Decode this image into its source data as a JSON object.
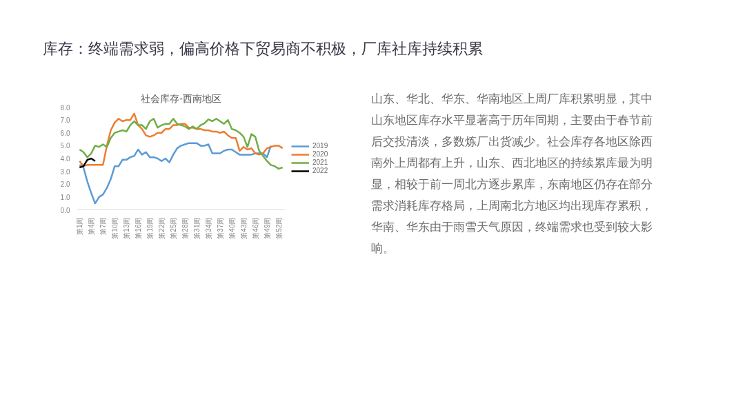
{
  "chart_data": {
    "type": "line",
    "title": "社会库存-西南地区",
    "categories": [
      "第1周",
      null,
      null,
      "第4周",
      null,
      null,
      "第7周",
      null,
      null,
      "第10周",
      null,
      null,
      "第13周",
      null,
      null,
      "第16周",
      null,
      null,
      "第19周",
      null,
      null,
      "第22周",
      null,
      null,
      "第25周",
      null,
      null,
      "第28周",
      null,
      null,
      "第31周",
      null,
      null,
      "第34周",
      null,
      null,
      "第37周",
      null,
      null,
      "第40周",
      null,
      null,
      "第43周",
      null,
      null,
      "第46周",
      null,
      null,
      "第49周",
      null,
      null,
      "第52周",
      null
    ],
    "series": [
      {
        "name": "2019",
        "color": "#5b9bd5",
        "values": [
          3.5,
          3.3,
          2.2,
          1.3,
          0.5,
          1.0,
          1.2,
          1.7,
          2.4,
          3.4,
          3.4,
          3.9,
          3.9,
          4.1,
          4.2,
          4.7,
          4.3,
          4.5,
          4.1,
          4.1,
          4.0,
          3.8,
          4.0,
          3.7,
          4.3,
          4.8,
          5.0,
          5.1,
          5.2,
          5.2,
          5.2,
          5.0,
          5.0,
          5.1,
          4.4,
          4.4,
          4.4,
          4.6,
          4.7,
          4.7,
          4.5,
          4.3,
          4.3,
          4.3,
          4.3,
          4.4,
          4.4,
          4.4,
          4.1,
          5.0,
          null,
          null,
          null
        ]
      },
      {
        "name": "2020",
        "color": "#ed7d31",
        "values": [
          3.8,
          3.4,
          3.5,
          3.5,
          3.5,
          3.5,
          3.5,
          5.0,
          6.2,
          6.8,
          7.1,
          6.9,
          7.0,
          7.0,
          7.5,
          6.6,
          6.3,
          5.8,
          5.7,
          5.8,
          6.0,
          6.0,
          6.3,
          6.3,
          6.6,
          6.6,
          6.7,
          6.7,
          6.4,
          6.4,
          6.3,
          6.3,
          6.2,
          6.2,
          6.1,
          6.1,
          6.0,
          6.1,
          5.8,
          5.6,
          5.6,
          4.6,
          4.9,
          4.7,
          4.8,
          4.4,
          4.3,
          4.4,
          4.8,
          4.9,
          5.0,
          5.0,
          4.8
        ]
      },
      {
        "name": "2021",
        "color": "#70ad47",
        "values": [
          4.7,
          4.5,
          4.1,
          4.4,
          5.0,
          4.9,
          5.1,
          4.9,
          5.6,
          6.0,
          6.1,
          6.2,
          6.1,
          6.6,
          6.9,
          6.6,
          6.6,
          6.3,
          6.9,
          7.1,
          6.4,
          6.6,
          6.7,
          6.7,
          7.1,
          6.7,
          6.6,
          6.5,
          6.3,
          6.5,
          6.3,
          6.6,
          6.75,
          7.05,
          6.9,
          7.1,
          6.9,
          6.7,
          7.0,
          6.3,
          6.2,
          6.0,
          5.7,
          4.9,
          5.9,
          5.7,
          4.6,
          4.2,
          3.8,
          3.5,
          3.4,
          3.2,
          3.3
        ]
      },
      {
        "name": "2022",
        "color": "#000000",
        "values": [
          3.3,
          3.4,
          3.9,
          4.0,
          3.8,
          null,
          null,
          null,
          null,
          null,
          null,
          null,
          null,
          null,
          null,
          null,
          null,
          null,
          null,
          null,
          null,
          null,
          null,
          null,
          null,
          null,
          null,
          null,
          null,
          null,
          null,
          null,
          null,
          null,
          null,
          null,
          null,
          null,
          null,
          null,
          null,
          null,
          null,
          null,
          null,
          null,
          null,
          null,
          null,
          null,
          null,
          null,
          null
        ]
      }
    ],
    "ylim": [
      0,
      8
    ],
    "yticks": [
      {
        "value": 0,
        "label": "0.0"
      },
      {
        "value": 1,
        "label": "1.0"
      },
      {
        "value": 2,
        "label": "2.0"
      },
      {
        "value": 3,
        "label": "3.0"
      },
      {
        "value": 4,
        "label": "4.0"
      },
      {
        "value": 5,
        "label": "5.0"
      },
      {
        "value": 6,
        "label": "6.0"
      },
      {
        "value": 7,
        "label": "7.0"
      },
      {
        "value": 8,
        "label": "8.0"
      }
    ],
    "grid": false,
    "legend": "right",
    "annotations": [
      "库存：终端需求弱，偏高价格下贸易商不积极，厂库社库持续积累",
      "山东、华北、华东、华南地区上周厂库积累明显，其中山东地区库存水平显著高于历年同期，主要由于春节前后交投清淡，多数炼厂出货减少。社会库存各地区除西南外上周都有上升，山东、西北地区的持续累库最为明显，相较于前一周北方逐步累库，东南地区仍存在部分需求消耗库存格局，上周南北方地区均出现库存累积，华南、华东由于雨雪天气原因，终端需求也受到较大影响。"
    ]
  }
}
